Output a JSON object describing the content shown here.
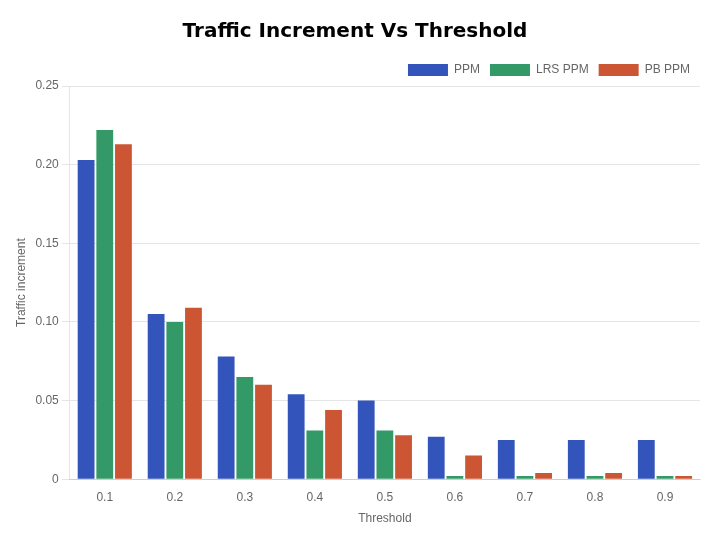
{
  "chart_data": {
    "type": "bar",
    "title": "Traffic Increment Vs Threshold",
    "x_label": "Threshold",
    "y_label": "Traffic increment",
    "categories": [
      "0.1",
      "0.2",
      "0.3",
      "0.4",
      "0.5",
      "0.6",
      "0.7",
      "0.8",
      "0.9"
    ],
    "series": [
      {
        "name": "PPM",
        "color": "#3355bb",
        "values": [
          0.203,
          0.105,
          0.078,
          0.054,
          0.05,
          0.027,
          0.025,
          0.025,
          0.025
        ]
      },
      {
        "name": "LRS PPM",
        "color": "#339966",
        "values": [
          0.222,
          0.1,
          0.065,
          0.031,
          0.031,
          0.002,
          0.002,
          0.002,
          0.002
        ]
      },
      {
        "name": "PB PPM",
        "color": "#cc5533",
        "values": [
          0.213,
          0.109,
          0.06,
          0.044,
          0.028,
          0.015,
          0.004,
          0.004,
          0.002
        ]
      }
    ],
    "ylim": [
      0,
      0.25
    ],
    "yticks": [
      0,
      0.05,
      {
        "value": 0.1,
        "label": "0.10"
      },
      0.15,
      {
        "value": 0.2,
        "label": "0.20"
      },
      0.25
    ],
    "grid": "y",
    "legend": "upper right"
  }
}
